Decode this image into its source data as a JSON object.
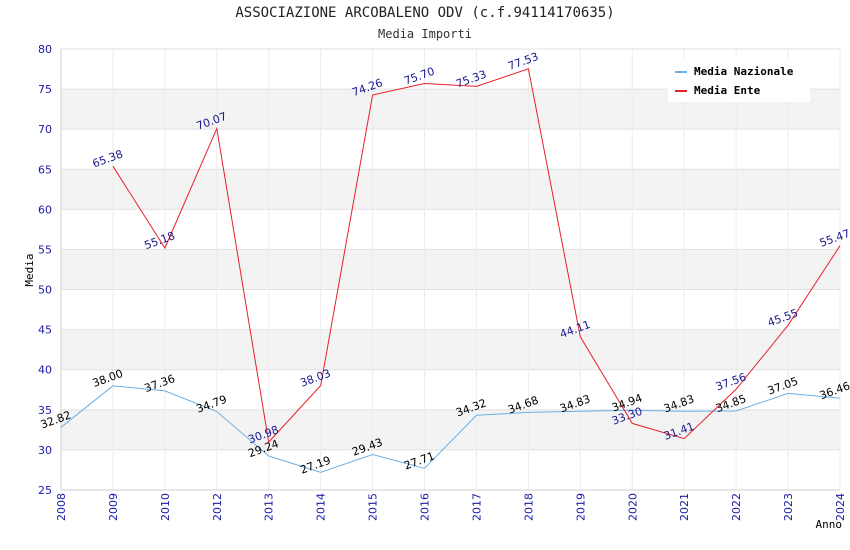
{
  "chart_data": {
    "type": "line",
    "title": "ASSOCIAZIONE ARCOBALENO ODV (c.f.94114170635)",
    "subtitle": "Media Importi",
    "xlabel": "Anno",
    "ylabel": "Media",
    "ylim": [
      25,
      80
    ],
    "yticks": [
      "25",
      "30",
      "35",
      "40",
      "45",
      "50",
      "55",
      "60",
      "65",
      "70",
      "75",
      "80"
    ],
    "categories": [
      "2008",
      "2009",
      "2010",
      "2012",
      "2013",
      "2014",
      "2015",
      "2016",
      "2017",
      "2018",
      "2019",
      "2020",
      "2021",
      "2022",
      "2023",
      "2024"
    ],
    "grid": true,
    "legend_position": "top-right",
    "series": [
      {
        "name": "Media Nazionale",
        "color": "#6ab0e6",
        "values": [
          32.82,
          38.0,
          37.36,
          34.79,
          29.24,
          27.19,
          29.43,
          27.71,
          34.32,
          34.68,
          34.83,
          34.94,
          34.83,
          34.85,
          37.05,
          36.46
        ],
        "labels": [
          "32.82",
          "38.00",
          "37.36",
          "34.79",
          "29.24",
          "27.19",
          "29.43",
          "27.71",
          "34.32",
          "34.68",
          "34.83",
          "34.94",
          "34.83",
          "34.85",
          "37.05",
          "36.46"
        ]
      },
      {
        "name": "Media Ente",
        "color": "#e8202a",
        "values": [
          null,
          65.38,
          55.18,
          70.07,
          30.98,
          38.03,
          74.26,
          75.7,
          75.33,
          77.53,
          44.11,
          33.3,
          31.41,
          37.56,
          45.55,
          55.47
        ],
        "labels": [
          "",
          "65.38",
          "55.18",
          "70.07",
          "30.98",
          "38.03",
          "74.26",
          "75.70",
          "75.33",
          "77.53",
          "44.11",
          "33.30",
          "31.41",
          "37.56",
          "45.55",
          "55.47"
        ]
      }
    ]
  }
}
